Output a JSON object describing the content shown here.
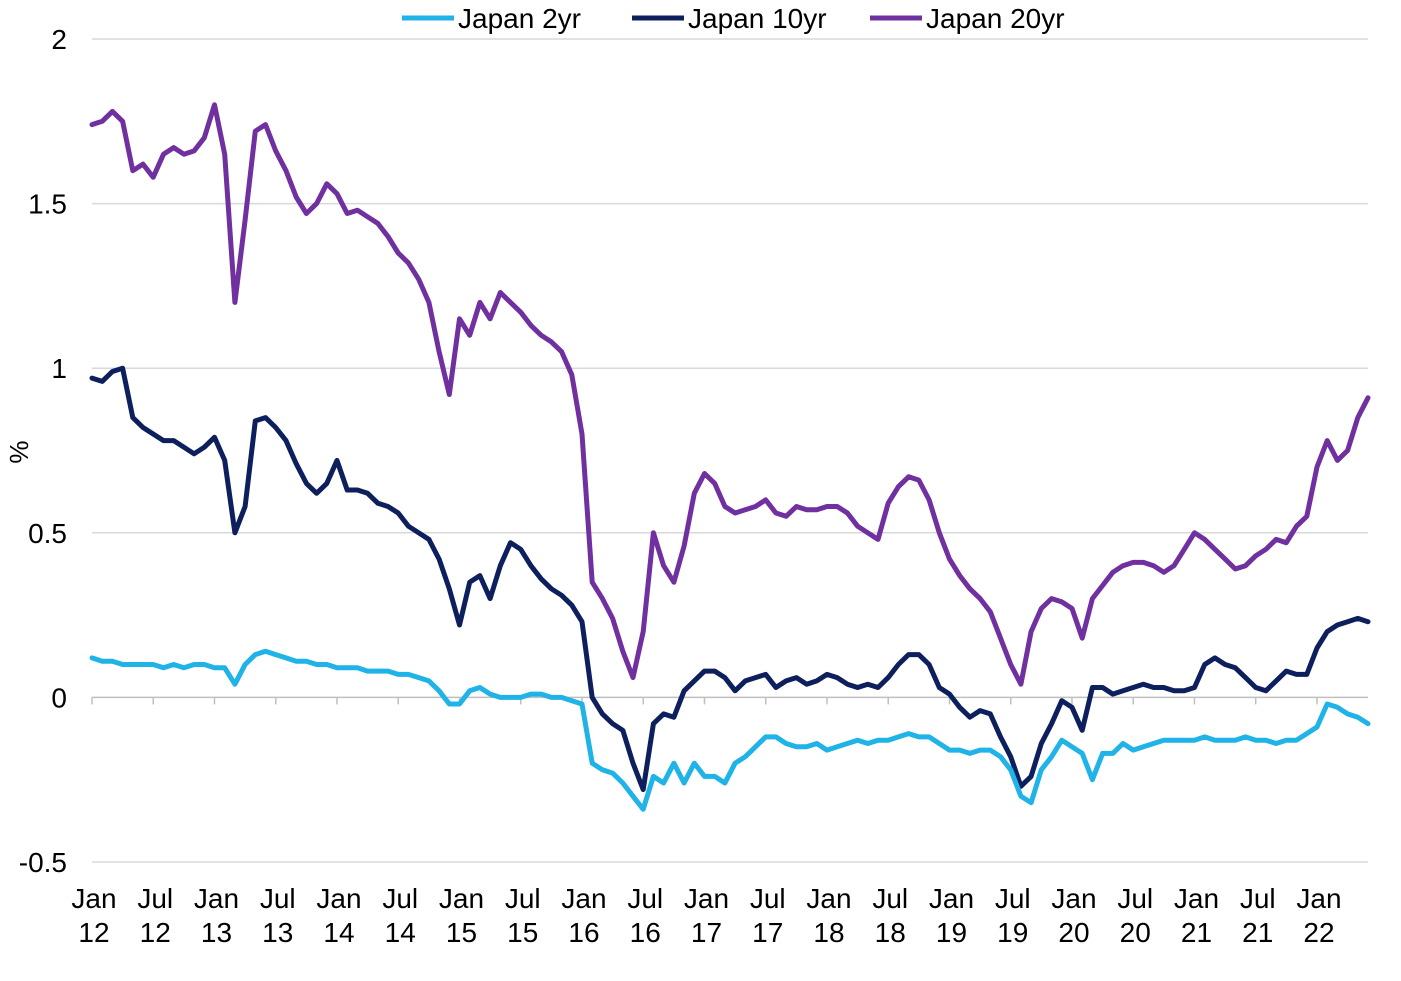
{
  "chart_data": {
    "type": "line",
    "title": "",
    "xlabel": "",
    "ylabel": "%",
    "ylim": [
      -0.5,
      2
    ],
    "yticks": [
      -0.5,
      0,
      0.5,
      1,
      1.5,
      2
    ],
    "ytick_labels": [
      "-0.5",
      "0",
      "0.5",
      "1",
      "1.5",
      "2"
    ],
    "grid": true,
    "legend_position": "top-center",
    "xlim": [
      "2012-01",
      "2022-06"
    ],
    "xticks": [
      {
        "x": "2012-01",
        "month": "Jan",
        "year": "12"
      },
      {
        "x": "2012-07",
        "month": "Jul",
        "year": "12"
      },
      {
        "x": "2013-01",
        "month": "Jan",
        "year": "13"
      },
      {
        "x": "2013-07",
        "month": "Jul",
        "year": "13"
      },
      {
        "x": "2014-01",
        "month": "Jan",
        "year": "14"
      },
      {
        "x": "2014-07",
        "month": "Jul",
        "year": "14"
      },
      {
        "x": "2015-01",
        "month": "Jan",
        "year": "15"
      },
      {
        "x": "2015-07",
        "month": "Jul",
        "year": "15"
      },
      {
        "x": "2016-01",
        "month": "Jan",
        "year": "16"
      },
      {
        "x": "2016-07",
        "month": "Jul",
        "year": "16"
      },
      {
        "x": "2017-01",
        "month": "Jan",
        "year": "17"
      },
      {
        "x": "2017-07",
        "month": "Jul",
        "year": "17"
      },
      {
        "x": "2018-01",
        "month": "Jan",
        "year": "18"
      },
      {
        "x": "2018-07",
        "month": "Jul",
        "year": "18"
      },
      {
        "x": "2019-01",
        "month": "Jan",
        "year": "19"
      },
      {
        "x": "2019-07",
        "month": "Jul",
        "year": "19"
      },
      {
        "x": "2020-01",
        "month": "Jan",
        "year": "20"
      },
      {
        "x": "2020-07",
        "month": "Jul",
        "year": "20"
      },
      {
        "x": "2021-01",
        "month": "Jan",
        "year": "21"
      },
      {
        "x": "2021-07",
        "month": "Jul",
        "year": "21"
      },
      {
        "x": "2022-01",
        "month": "Jan",
        "year": "22"
      }
    ],
    "x": [
      "2012-01",
      "2012-02",
      "2012-03",
      "2012-04",
      "2012-05",
      "2012-06",
      "2012-07",
      "2012-08",
      "2012-09",
      "2012-10",
      "2012-11",
      "2012-12",
      "2013-01",
      "2013-02",
      "2013-03",
      "2013-04",
      "2013-05",
      "2013-06",
      "2013-07",
      "2013-08",
      "2013-09",
      "2013-10",
      "2013-11",
      "2013-12",
      "2014-01",
      "2014-02",
      "2014-03",
      "2014-04",
      "2014-05",
      "2014-06",
      "2014-07",
      "2014-08",
      "2014-09",
      "2014-10",
      "2014-11",
      "2014-12",
      "2015-01",
      "2015-02",
      "2015-03",
      "2015-04",
      "2015-05",
      "2015-06",
      "2015-07",
      "2015-08",
      "2015-09",
      "2015-10",
      "2015-11",
      "2015-12",
      "2016-01",
      "2016-02",
      "2016-03",
      "2016-04",
      "2016-05",
      "2016-06",
      "2016-07",
      "2016-08",
      "2016-09",
      "2016-10",
      "2016-11",
      "2016-12",
      "2017-01",
      "2017-02",
      "2017-03",
      "2017-04",
      "2017-05",
      "2017-06",
      "2017-07",
      "2017-08",
      "2017-09",
      "2017-10",
      "2017-11",
      "2017-12",
      "2018-01",
      "2018-02",
      "2018-03",
      "2018-04",
      "2018-05",
      "2018-06",
      "2018-07",
      "2018-08",
      "2018-09",
      "2018-10",
      "2018-11",
      "2018-12",
      "2019-01",
      "2019-02",
      "2019-03",
      "2019-04",
      "2019-05",
      "2019-06",
      "2019-07",
      "2019-08",
      "2019-09",
      "2019-10",
      "2019-11",
      "2019-12",
      "2020-01",
      "2020-02",
      "2020-03",
      "2020-04",
      "2020-05",
      "2020-06",
      "2020-07",
      "2020-08",
      "2020-09",
      "2020-10",
      "2020-11",
      "2020-12",
      "2021-01",
      "2021-02",
      "2021-03",
      "2021-04",
      "2021-05",
      "2021-06",
      "2021-07",
      "2021-08",
      "2021-09",
      "2021-10",
      "2021-11",
      "2021-12",
      "2022-01",
      "2022-02",
      "2022-03",
      "2022-04",
      "2022-05",
      "2022-06"
    ],
    "series": [
      {
        "name": "Japan 2yr",
        "color": "#1fb3e8",
        "values": [
          0.12,
          0.11,
          0.11,
          0.1,
          0.1,
          0.1,
          0.1,
          0.09,
          0.1,
          0.09,
          0.1,
          0.1,
          0.09,
          0.09,
          0.04,
          0.1,
          0.13,
          0.14,
          0.13,
          0.12,
          0.11,
          0.11,
          0.1,
          0.1,
          0.09,
          0.09,
          0.09,
          0.08,
          0.08,
          0.08,
          0.07,
          0.07,
          0.06,
          0.05,
          0.02,
          -0.02,
          -0.02,
          0.02,
          0.03,
          0.01,
          0.0,
          0.0,
          0.0,
          0.01,
          0.01,
          0.0,
          0.0,
          -0.01,
          -0.02,
          -0.2,
          -0.22,
          -0.23,
          -0.26,
          -0.3,
          -0.34,
          -0.24,
          -0.26,
          -0.2,
          -0.26,
          -0.2,
          -0.24,
          -0.24,
          -0.26,
          -0.2,
          -0.18,
          -0.15,
          -0.12,
          -0.12,
          -0.14,
          -0.15,
          -0.15,
          -0.14,
          -0.16,
          -0.15,
          -0.14,
          -0.13,
          -0.14,
          -0.13,
          -0.13,
          -0.12,
          -0.11,
          -0.12,
          -0.12,
          -0.14,
          -0.16,
          -0.16,
          -0.17,
          -0.16,
          -0.16,
          -0.18,
          -0.22,
          -0.3,
          -0.32,
          -0.22,
          -0.18,
          -0.13,
          -0.15,
          -0.17,
          -0.25,
          -0.17,
          -0.17,
          -0.14,
          -0.16,
          -0.15,
          -0.14,
          -0.13,
          -0.13,
          -0.13,
          -0.13,
          -0.12,
          -0.13,
          -0.13,
          -0.13,
          -0.12,
          -0.13,
          -0.13,
          -0.14,
          -0.13,
          -0.13,
          -0.11,
          -0.09,
          -0.02,
          -0.03,
          -0.05,
          -0.06,
          -0.08
        ]
      },
      {
        "name": "Japan 10yr",
        "color": "#0d1f5c",
        "values": [
          0.97,
          0.96,
          0.99,
          1.0,
          0.85,
          0.82,
          0.8,
          0.78,
          0.78,
          0.76,
          0.74,
          0.76,
          0.79,
          0.72,
          0.5,
          0.58,
          0.84,
          0.85,
          0.82,
          0.78,
          0.71,
          0.65,
          0.62,
          0.65,
          0.72,
          0.63,
          0.63,
          0.62,
          0.59,
          0.58,
          0.56,
          0.52,
          0.5,
          0.48,
          0.42,
          0.33,
          0.22,
          0.35,
          0.37,
          0.3,
          0.4,
          0.47,
          0.45,
          0.4,
          0.36,
          0.33,
          0.31,
          0.28,
          0.23,
          0.0,
          -0.05,
          -0.08,
          -0.1,
          -0.2,
          -0.28,
          -0.08,
          -0.05,
          -0.06,
          0.02,
          0.05,
          0.08,
          0.08,
          0.06,
          0.02,
          0.05,
          0.06,
          0.07,
          0.03,
          0.05,
          0.06,
          0.04,
          0.05,
          0.07,
          0.06,
          0.04,
          0.03,
          0.04,
          0.03,
          0.06,
          0.1,
          0.13,
          0.13,
          0.1,
          0.03,
          0.01,
          -0.03,
          -0.06,
          -0.04,
          -0.05,
          -0.12,
          -0.18,
          -0.27,
          -0.24,
          -0.14,
          -0.08,
          -0.01,
          -0.03,
          -0.1,
          0.03,
          0.03,
          0.01,
          0.02,
          0.03,
          0.04,
          0.03,
          0.03,
          0.02,
          0.02,
          0.03,
          0.1,
          0.12,
          0.1,
          0.09,
          0.06,
          0.03,
          0.02,
          0.05,
          0.08,
          0.07,
          0.07,
          0.15,
          0.2,
          0.22,
          0.23,
          0.24,
          0.23
        ]
      },
      {
        "name": "Japan 20yr",
        "color": "#7030a0",
        "values": [
          1.74,
          1.75,
          1.78,
          1.75,
          1.6,
          1.62,
          1.58,
          1.65,
          1.67,
          1.65,
          1.66,
          1.7,
          1.8,
          1.65,
          1.2,
          1.45,
          1.72,
          1.74,
          1.66,
          1.6,
          1.52,
          1.47,
          1.5,
          1.56,
          1.53,
          1.47,
          1.48,
          1.46,
          1.44,
          1.4,
          1.35,
          1.32,
          1.27,
          1.2,
          1.05,
          0.92,
          1.15,
          1.1,
          1.2,
          1.15,
          1.23,
          1.2,
          1.17,
          1.13,
          1.1,
          1.08,
          1.05,
          0.98,
          0.8,
          0.35,
          0.3,
          0.24,
          0.14,
          0.06,
          0.2,
          0.5,
          0.4,
          0.35,
          0.46,
          0.62,
          0.68,
          0.65,
          0.58,
          0.56,
          0.57,
          0.58,
          0.6,
          0.56,
          0.55,
          0.58,
          0.57,
          0.57,
          0.58,
          0.58,
          0.56,
          0.52,
          0.5,
          0.48,
          0.59,
          0.64,
          0.67,
          0.66,
          0.6,
          0.5,
          0.42,
          0.37,
          0.33,
          0.3,
          0.26,
          0.18,
          0.1,
          0.04,
          0.2,
          0.27,
          0.3,
          0.29,
          0.27,
          0.18,
          0.3,
          0.34,
          0.38,
          0.4,
          0.41,
          0.41,
          0.4,
          0.38,
          0.4,
          0.45,
          0.5,
          0.48,
          0.45,
          0.42,
          0.39,
          0.4,
          0.43,
          0.45,
          0.48,
          0.47,
          0.52,
          0.55,
          0.7,
          0.78,
          0.72,
          0.75,
          0.85,
          0.91
        ]
      }
    ]
  }
}
